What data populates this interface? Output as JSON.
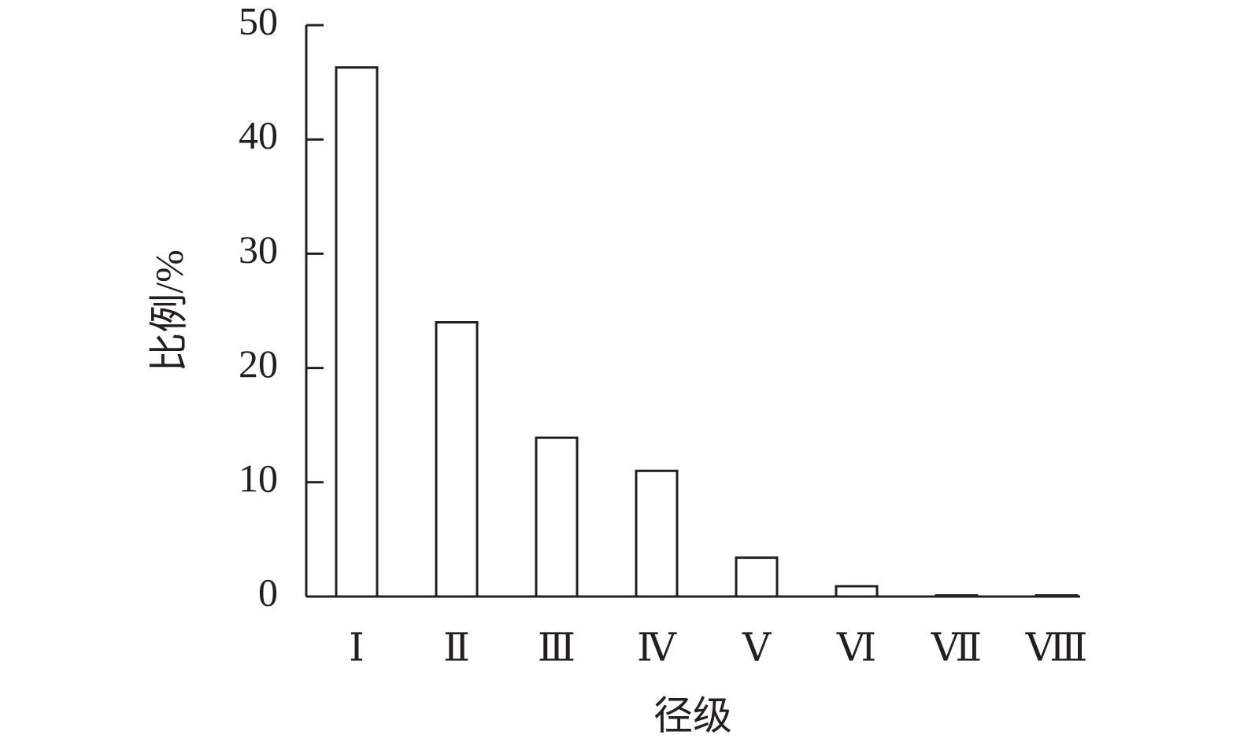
{
  "chart_data": {
    "type": "bar",
    "x_label": "径级",
    "y_label": "比例/%",
    "categories": [
      "Ⅰ",
      "Ⅱ",
      "Ⅲ",
      "Ⅳ",
      "Ⅴ",
      "Ⅵ",
      "Ⅶ",
      "Ⅷ"
    ],
    "values": [
      46.3,
      24.0,
      13.9,
      11.0,
      3.4,
      0.9,
      0.1,
      0.1
    ],
    "color": "#ffffff",
    "edge_color": "#231f20",
    "ylim": [
      0,
      50
    ],
    "yticks": [
      0,
      10,
      20,
      30,
      40,
      50
    ],
    "grid": false
  }
}
